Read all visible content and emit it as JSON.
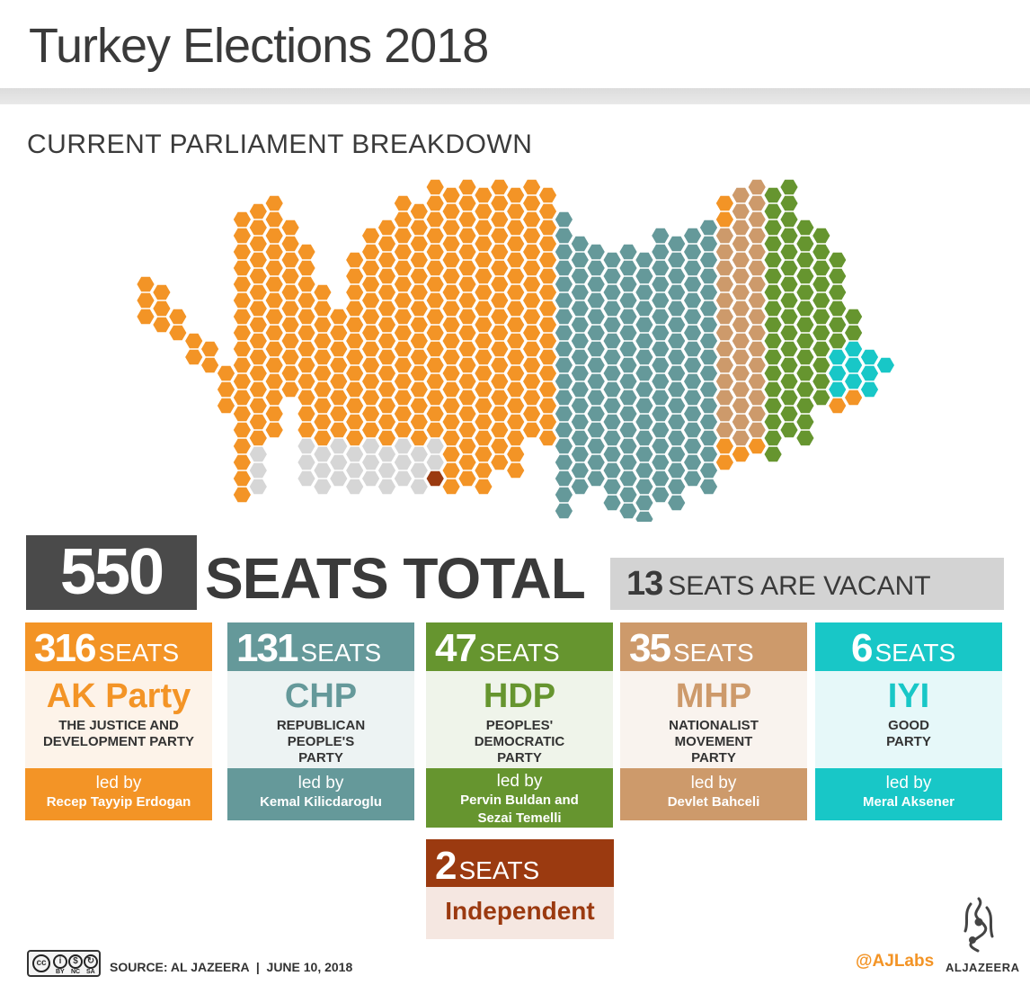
{
  "header": {
    "title": "Turkey Elections 2018",
    "subtitle": "CURRENT PARLIAMENT BREAKDOWN"
  },
  "summary": {
    "total_number": "550",
    "total_label": "SEATS TOTAL",
    "vacant_number": "13",
    "vacant_label": "SEATS ARE VACANT"
  },
  "parties": [
    {
      "seats": "316",
      "seats_label": "SEATS",
      "abbr": "AK Party",
      "full_name": "THE JUSTICE AND DEVELOPMENT PARTY",
      "led_by_label": "led by",
      "leader": "Recep Tayyip Erdogan",
      "color": "#f39426",
      "light": "#fdf3e9"
    },
    {
      "seats": "131",
      "seats_label": "SEATS",
      "abbr": "CHP",
      "full_name": "REPUBLICAN PEOPLE'S PARTY",
      "led_by_label": "led by",
      "leader": "Kemal Kilicdaroglu",
      "color": "#65999a",
      "light": "#edf3f3"
    },
    {
      "seats": "47",
      "seats_label": "SEATS",
      "abbr": "HDP",
      "full_name": "PEOPLES' DEMOCRATIC PARTY",
      "led_by_label": "led by",
      "leader": "Pervin Buldan and Sezai Temelli",
      "color": "#66952f",
      "light": "#eff4ea"
    },
    {
      "seats": "35",
      "seats_label": "SEATS",
      "abbr": "MHP",
      "full_name": "NATIONALIST MOVEMENT PARTY",
      "led_by_label": "led by",
      "leader": "Devlet Bahceli",
      "color": "#cd9a6b",
      "light": "#f9f3ee"
    },
    {
      "seats": "6",
      "seats_label": "SEATS",
      "abbr": "IYI",
      "full_name": "GOOD PARTY",
      "led_by_label": "led by",
      "leader": "Meral Aksener",
      "color": "#18c7c7",
      "light": "#e6f8f9"
    }
  ],
  "independent": {
    "seats": "2",
    "seats_label": "SEATS",
    "label": "Independent",
    "color": "#9b3a10"
  },
  "footer": {
    "license_labels": [
      "BY",
      "NC",
      "SA"
    ],
    "source": "SOURCE: AL JAZEERA  |  JUNE 10, 2018",
    "handle": "@AJLabs",
    "brand": "ALJAZEERA"
  },
  "chart_data": {
    "type": "hexagon seat map",
    "title": "CURRENT PARLIAMENT BREAKDOWN",
    "total_seats": 550,
    "categories": [
      "AK Party",
      "CHP",
      "HDP",
      "MHP",
      "IYI",
      "Independent",
      "Vacant"
    ],
    "values": [
      316,
      131,
      47,
      35,
      6,
      2,
      13
    ],
    "colors": [
      "#f39426",
      "#65999a",
      "#66952f",
      "#cd9a6b",
      "#18c7c7",
      "#9b3a10",
      "#d6d6d6"
    ]
  }
}
